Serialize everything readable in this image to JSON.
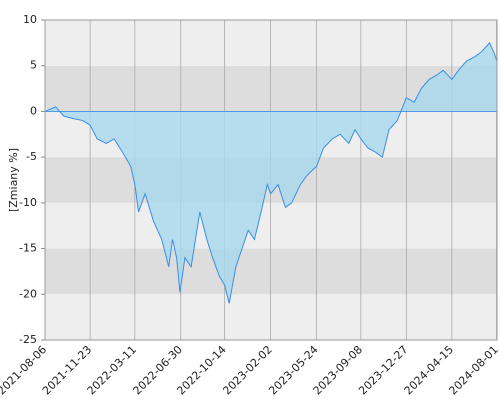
{
  "chart_data": {
    "type": "area",
    "y_label": "[Zmiany %]",
    "x": [
      "2021-08-06",
      "2021-09-01",
      "2021-09-20",
      "2021-10-15",
      "2021-11-05",
      "2021-11-23",
      "2021-12-10",
      "2022-01-01",
      "2022-01-20",
      "2022-02-10",
      "2022-03-01",
      "2022-03-11",
      "2022-03-20",
      "2022-04-05",
      "2022-04-25",
      "2022-05-15",
      "2022-06-01",
      "2022-06-10",
      "2022-06-20",
      "2022-06-28",
      "2022-07-10",
      "2022-07-25",
      "2022-08-15",
      "2022-09-01",
      "2022-09-15",
      "2022-10-01",
      "2022-10-14",
      "2022-10-25",
      "2022-11-10",
      "2022-11-25",
      "2022-12-10",
      "2022-12-25",
      "2023-01-10",
      "2023-01-25",
      "2023-02-02",
      "2023-02-20",
      "2023-03-10",
      "2023-03-25",
      "2023-04-15",
      "2023-05-01",
      "2023-05-24",
      "2023-06-10",
      "2023-07-01",
      "2023-07-20",
      "2023-08-10",
      "2023-08-25",
      "2023-09-08",
      "2023-09-25",
      "2023-10-15",
      "2023-10-30",
      "2023-11-15",
      "2023-12-05",
      "2023-12-27",
      "2024-01-15",
      "2024-02-01",
      "2024-02-20",
      "2024-03-10",
      "2024-03-25",
      "2024-04-15",
      "2024-05-01",
      "2024-05-20",
      "2024-06-10",
      "2024-06-25",
      "2024-07-15",
      "2024-07-25",
      "2024-08-02"
    ],
    "values": [
      0,
      0.5,
      -0.5,
      -0.8,
      -1,
      -1.5,
      -3,
      -3.5,
      -3,
      -4.5,
      -6,
      -8,
      -11,
      -9,
      -12,
      -14,
      -17,
      -14,
      -16,
      -19.8,
      -16,
      -17,
      -11,
      -14,
      -16,
      -18,
      -19,
      -21,
      -17,
      -15,
      -13,
      -14,
      -11,
      -8,
      -9,
      -8,
      -10.5,
      -10,
      -8,
      -7,
      -6,
      -4,
      -3,
      -2.5,
      -3.5,
      -2,
      -3,
      -4,
      -4.5,
      -5,
      -2,
      -1,
      1.5,
      1,
      2.5,
      3.5,
      4,
      4.5,
      3.5,
      4.5,
      5.5,
      6,
      6.5,
      7.5,
      6.5,
      5.5
    ],
    "line_color": "#3a8ee6",
    "fill_color": "#a8d8ee",
    "xlim": [
      "2021-08-06",
      "2024-08-02"
    ],
    "xticks": [
      "2021-08-06",
      "2021-11-23",
      "2022-03-11",
      "2022-06-30",
      "2022-10-14",
      "2023-02-02",
      "2023-05-24",
      "2023-09-08",
      "2023-12-27",
      "2024-04-15",
      "2024-08-01"
    ],
    "ylim": [
      -25,
      10
    ],
    "yticks": [
      -25,
      -20,
      -15,
      -10,
      -5,
      0,
      5,
      10
    ]
  }
}
